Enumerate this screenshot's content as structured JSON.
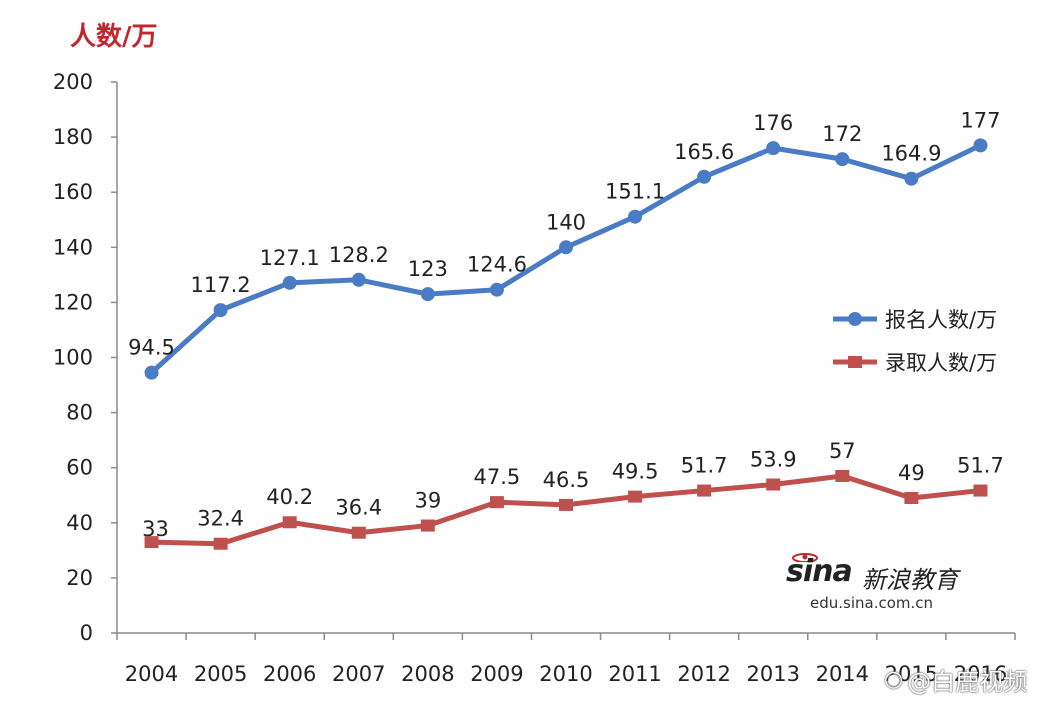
{
  "chart_data": {
    "type": "line",
    "title": "",
    "y_unit_label": "人数/万",
    "xlabel": "",
    "ylabel": "人数/万",
    "ylim": [
      0,
      200
    ],
    "yticks": [
      0,
      20,
      40,
      60,
      80,
      100,
      120,
      140,
      160,
      180,
      200
    ],
    "categories": [
      "2004",
      "2005",
      "2006",
      "2007",
      "2008",
      "2009",
      "2010",
      "2011",
      "2012",
      "2013",
      "2014",
      "2015",
      "2016"
    ],
    "grid": false,
    "legend_position": "right",
    "series": [
      {
        "name": "报名人数/万",
        "color": "#4a7cc5",
        "values": [
          94.5,
          117.2,
          127.1,
          128.2,
          123,
          124.6,
          140,
          151.1,
          165.6,
          176,
          172,
          164.9,
          177
        ],
        "labels": [
          "94.5",
          "117.2",
          "127.1",
          "128.2",
          "123",
          "124.6",
          "140",
          "151.1",
          "165.6",
          "176",
          "172",
          "164.9",
          "177"
        ]
      },
      {
        "name": "录取人数/万",
        "color": "#c0504d",
        "values": [
          33,
          32.4,
          40.2,
          36.4,
          39,
          47.5,
          46.5,
          49.5,
          51.7,
          53.9,
          57,
          49,
          51.7
        ],
        "labels": [
          "33",
          "32.4",
          "40.2",
          "36.4",
          "39",
          "47.5",
          "46.5",
          "49.5",
          "51.7",
          "53.9",
          "57",
          "49",
          "51.7"
        ]
      }
    ]
  },
  "watermarks": {
    "sina_logo": "sina",
    "sina_brand": "新浪教育",
    "sina_url": "edu.sina.com.cn",
    "overlay": "@白鹿视频"
  }
}
